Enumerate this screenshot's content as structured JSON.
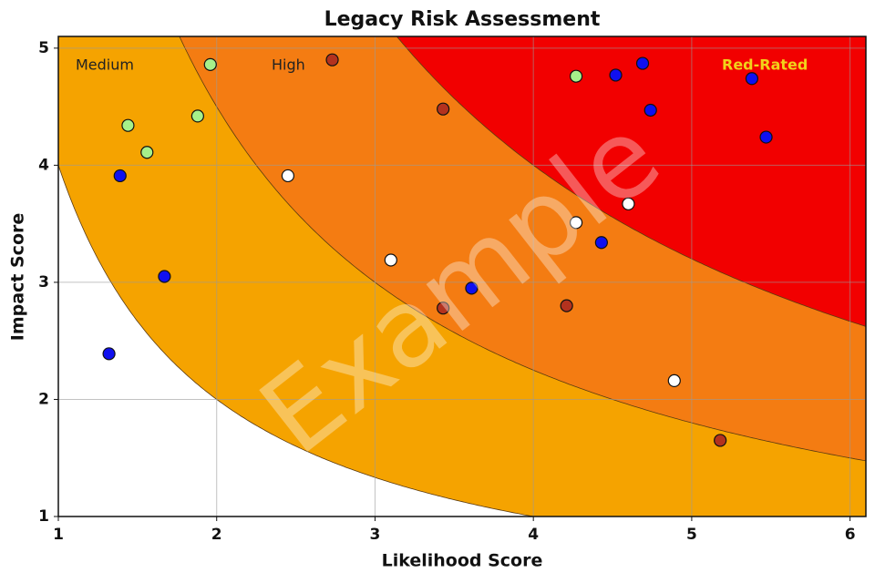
{
  "chart_data": {
    "type": "scatter",
    "title": "Legacy Risk Assessment",
    "x_label": "Likelihood Score",
    "y_label": "Impact Score",
    "watermark": "Example",
    "xlim": [
      1,
      6.1
    ],
    "ylim": [
      1,
      5.1
    ],
    "xticks": [
      1,
      2,
      3,
      4,
      5,
      6
    ],
    "yticks": [
      1,
      2,
      3,
      4,
      5
    ],
    "grid": true,
    "zones": [
      {
        "name": "Medium",
        "threshold": 4,
        "color": "#f5a300",
        "label_color": "#222222"
      },
      {
        "name": "High",
        "threshold": 9,
        "color": "#f47c12",
        "label_color": "#222222"
      },
      {
        "name": "Red-Rated",
        "threshold": 16,
        "color": "#f20000",
        "label_color": "#f2d21a"
      }
    ],
    "series": [
      {
        "color": "#a6f08a",
        "x": [
          1.44,
          1.56,
          1.96,
          1.88,
          4.27
        ],
        "values": [
          4.34,
          4.11,
          4.86,
          4.42,
          4.76
        ]
      },
      {
        "color": "#1010f0",
        "x": [
          1.39,
          1.67,
          1.32,
          3.61,
          4.43,
          4.52,
          4.69,
          4.74,
          5.38,
          5.47
        ],
        "values": [
          3.91,
          3.05,
          2.39,
          2.95,
          3.34,
          4.77,
          4.87,
          4.47,
          4.74,
          4.24
        ]
      },
      {
        "color": "#ffffff",
        "x": [
          2.45,
          3.1,
          4.27,
          4.6,
          4.89
        ],
        "values": [
          3.91,
          3.19,
          3.51,
          3.67,
          2.16
        ]
      },
      {
        "color": "#b3321e",
        "x": [
          2.73,
          3.43,
          3.43,
          4.21,
          5.18
        ],
        "values": [
          4.9,
          4.48,
          2.78,
          2.8,
          1.65
        ]
      }
    ]
  }
}
